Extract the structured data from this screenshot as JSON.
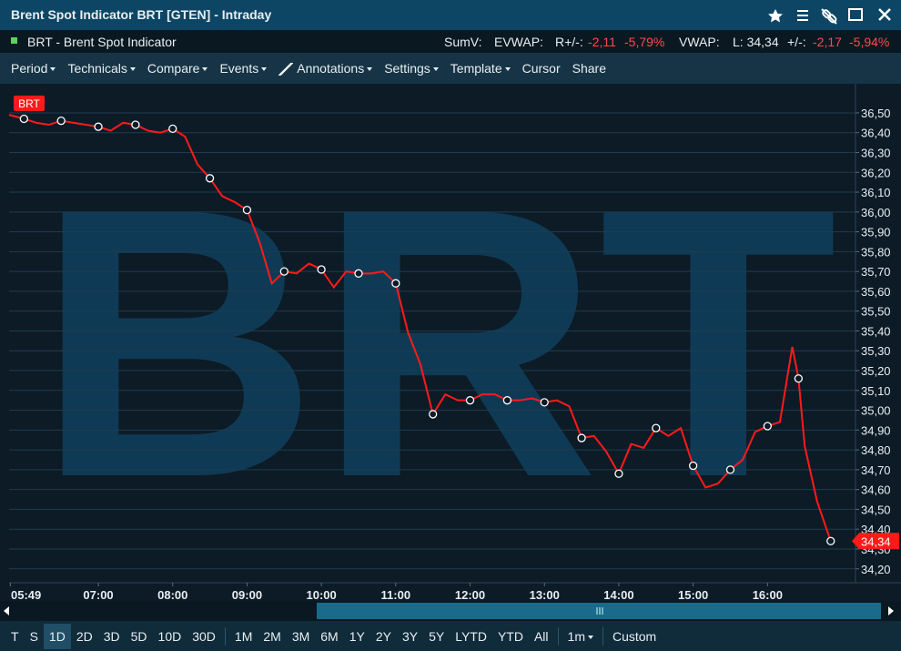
{
  "header": {
    "title": "Brent Spot Indicator BRT [GTEN] - Intraday"
  },
  "info": {
    "instrument": "BRT - Brent Spot Indicator",
    "sumv": "SumV:",
    "evwap": "EVWAP:",
    "r_label": "R+/-:",
    "r_change": "-2,11",
    "r_pct": "-5,79%",
    "vwap": "VWAP:",
    "last": "L: 34,34",
    "chg_label": "+/-:",
    "change": "-2,17",
    "pct": "-5,94%"
  },
  "toolbar": [
    "Period",
    "Technicals",
    "Compare",
    "Events",
    "Annotations",
    "Settings",
    "Template",
    "Cursor",
    "Share"
  ],
  "ranges": [
    "T",
    "S",
    "1D",
    "2D",
    "3D",
    "5D",
    "10D",
    "30D",
    "1M",
    "2M",
    "3M",
    "6M",
    "1Y",
    "2Y",
    "3Y",
    "5Y",
    "LYTD",
    "YTD",
    "All",
    "1m",
    "Custom"
  ],
  "chart_data": {
    "type": "line",
    "watermark": "BRT",
    "x": [
      "05:48",
      "06:00",
      "06:10",
      "06:20",
      "06:30",
      "06:40",
      "06:50",
      "07:00",
      "07:10",
      "07:20",
      "07:30",
      "07:40",
      "07:50",
      "08:00",
      "08:10",
      "08:20",
      "08:30",
      "08:40",
      "08:50",
      "09:00",
      "09:10",
      "09:20",
      "09:30",
      "09:40",
      "09:50",
      "10:00",
      "10:10",
      "10:20",
      "10:30",
      "10:40",
      "10:50",
      "11:00",
      "11:10",
      "11:20",
      "11:30",
      "11:40",
      "11:50",
      "12:00",
      "12:10",
      "12:20",
      "12:30",
      "12:40",
      "12:50",
      "13:00",
      "13:10",
      "13:20",
      "13:30",
      "13:40",
      "13:50",
      "14:00",
      "14:10",
      "14:20",
      "14:30",
      "14:40",
      "14:50",
      "15:00",
      "15:10",
      "15:20",
      "15:30",
      "15:40",
      "15:50",
      "16:00",
      "16:10",
      "16:20",
      "16:25",
      "16:30",
      "16:40",
      "16:51"
    ],
    "series": [
      {
        "name": "BRT",
        "color": "#ff1a1a",
        "values": [
          36.49,
          36.47,
          36.45,
          36.44,
          36.46,
          36.45,
          36.44,
          36.43,
          36.41,
          36.45,
          36.44,
          36.41,
          36.4,
          36.42,
          36.38,
          36.24,
          36.17,
          36.08,
          36.05,
          36.01,
          35.85,
          35.64,
          35.7,
          35.69,
          35.74,
          35.71,
          35.62,
          35.7,
          35.69,
          35.69,
          35.7,
          35.64,
          35.39,
          35.23,
          34.98,
          35.08,
          35.05,
          35.05,
          35.08,
          35.08,
          35.05,
          35.05,
          35.06,
          35.04,
          35.05,
          35.02,
          34.86,
          34.87,
          34.79,
          34.68,
          34.83,
          34.81,
          34.91,
          34.87,
          34.91,
          34.72,
          34.61,
          34.63,
          34.7,
          34.75,
          34.89,
          34.92,
          34.94,
          35.32,
          35.16,
          34.82,
          34.54,
          34.34
        ]
      }
    ],
    "last_price": {
      "value": 34.34,
      "label": "34,34"
    },
    "xlim": [
      "05:48",
      "17:11"
    ],
    "xticks": [
      "05:49",
      "07:00",
      "08:00",
      "09:00",
      "10:00",
      "11:00",
      "12:00",
      "13:00",
      "14:00",
      "15:00",
      "16:00"
    ],
    "ylim": [
      34.13,
      36.61
    ],
    "yticks": [
      {
        "value": 34.2,
        "label": "34,20"
      },
      {
        "value": 34.3,
        "label": "34,30"
      },
      {
        "value": 34.4,
        "label": "34,40"
      },
      {
        "value": 34.5,
        "label": "34,50"
      },
      {
        "value": 34.6,
        "label": "34,60"
      },
      {
        "value": 34.7,
        "label": "34,70"
      },
      {
        "value": 34.8,
        "label": "34,80"
      },
      {
        "value": 34.9,
        "label": "34,90"
      },
      {
        "value": 35.0,
        "label": "35,00"
      },
      {
        "value": 35.1,
        "label": "35,10"
      },
      {
        "value": 35.2,
        "label": "35,20"
      },
      {
        "value": 35.3,
        "label": "35,30"
      },
      {
        "value": 35.4,
        "label": "35,40"
      },
      {
        "value": 35.5,
        "label": "35,50"
      },
      {
        "value": 35.6,
        "label": "35,60"
      },
      {
        "value": 35.7,
        "label": "35,70"
      },
      {
        "value": 35.8,
        "label": "35,80"
      },
      {
        "value": 35.9,
        "label": "35,90"
      },
      {
        "value": 36.0,
        "label": "36,00"
      },
      {
        "value": 36.1,
        "label": "36,10"
      },
      {
        "value": 36.2,
        "label": "36,20"
      },
      {
        "value": 36.3,
        "label": "36,30"
      },
      {
        "value": 36.4,
        "label": "36,40"
      },
      {
        "value": 36.5,
        "label": "36,50"
      }
    ],
    "grid": true
  }
}
